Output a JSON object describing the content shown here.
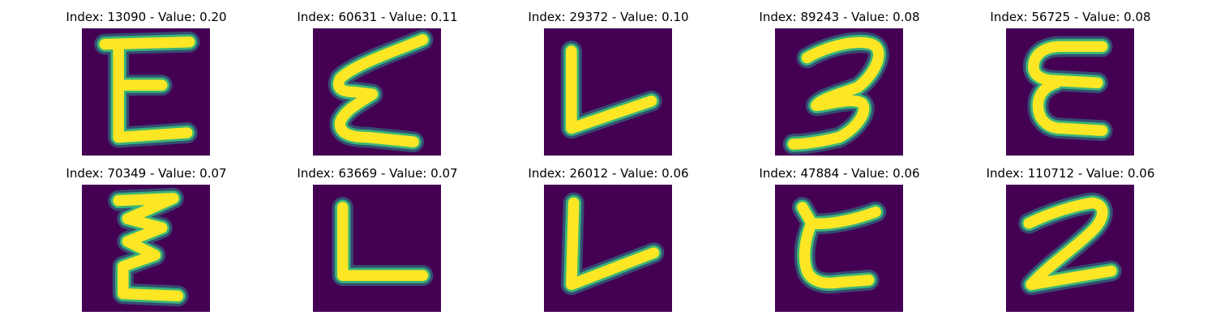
{
  "colormap": {
    "background": "#440154",
    "glow": "#2a8a8a",
    "edge": "#3bbf7a",
    "stroke": "#fde725"
  },
  "grid": [
    {
      "title": "Index: 13090 - Value: 0.20",
      "glyph": "E"
    },
    {
      "title": "Index: 60631 - Value: 0.11",
      "glyph": "E"
    },
    {
      "title": "Index: 29372 - Value: 0.10",
      "glyph": "L"
    },
    {
      "title": "Index: 89243 - Value: 0.08",
      "glyph": "3"
    },
    {
      "title": "Index: 56725 - Value: 0.08",
      "glyph": "E"
    },
    {
      "title": "Index: 70349 - Value: 0.07",
      "glyph": "E"
    },
    {
      "title": "Index: 63669 - Value: 0.07",
      "glyph": "L"
    },
    {
      "title": "Index: 26012 - Value: 0.06",
      "glyph": "L"
    },
    {
      "title": "Index: 47884 - Value: 0.06",
      "glyph": "C"
    },
    {
      "title": "Index: 110712 - Value: 0.06",
      "glyph": "2"
    }
  ]
}
